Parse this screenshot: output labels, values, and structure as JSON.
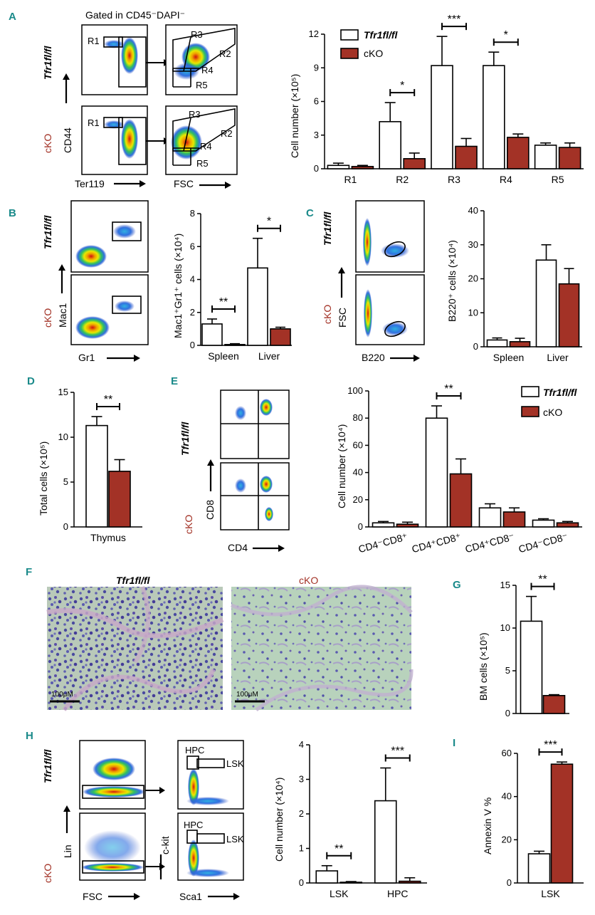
{
  "colors": {
    "wt": "#ffffff",
    "cko": "#a33226",
    "panel_label": "#1a8a8a"
  },
  "genotypes": {
    "wt": "Tfr1fl/fl",
    "cko": "cKO"
  },
  "A": {
    "label": "A",
    "gated_text": "Gated in CD45⁻DAPI⁻",
    "gates_left": [
      "R1"
    ],
    "gates_right": [
      "R3",
      "R2",
      "R4",
      "R5"
    ],
    "x_axis_1": "Ter119",
    "x_axis_2": "FSC",
    "y_axis": "CD44",
    "chart_data": {
      "type": "bar",
      "ylabel": "Cell number (×10⁵)",
      "ylim": [
        0,
        12
      ],
      "yticks": [
        "0",
        "3",
        "6",
        "9",
        "12"
      ],
      "categories": [
        "R1",
        "R2",
        "R3",
        "R4",
        "R5"
      ],
      "series": [
        {
          "name": "Tfr1fl/fl",
          "values": [
            0.3,
            4.2,
            9.2,
            9.2,
            2.1
          ],
          "err": [
            0.2,
            1.7,
            2.6,
            1.2,
            0.2
          ]
        },
        {
          "name": "cKO",
          "values": [
            0.2,
            0.9,
            2.0,
            2.8,
            1.9
          ],
          "err": [
            0.1,
            0.5,
            0.7,
            0.3,
            0.4
          ]
        }
      ],
      "sig": [
        "",
        "*",
        "***",
        "*",
        ""
      ],
      "legend": [
        "Tfr1fl/fl",
        "cKO"
      ]
    }
  },
  "B": {
    "label": "B",
    "x_axis": "Gr1",
    "y_axis": "Mac1",
    "chart_data": {
      "type": "bar",
      "ylabel": "Mac1⁺Gr1⁺ cells (×10⁴)",
      "ylim": [
        0,
        8
      ],
      "yticks": [
        "0",
        "2",
        "4",
        "6",
        "8"
      ],
      "categories": [
        "Spleen",
        "Liver"
      ],
      "series": [
        {
          "name": "Tfr1fl/fl",
          "values": [
            1.3,
            4.7
          ],
          "err": [
            0.3,
            1.8
          ]
        },
        {
          "name": "cKO",
          "values": [
            0.05,
            1.0
          ],
          "err": [
            0.05,
            0.1
          ]
        }
      ],
      "sig": [
        "**",
        "*"
      ]
    }
  },
  "C": {
    "label": "C",
    "x_axis": "B220",
    "y_axis": "FSC",
    "chart_data": {
      "type": "bar",
      "ylabel": "B220⁺ cells (×10⁴)",
      "ylim": [
        0,
        40
      ],
      "yticks": [
        "0",
        "10",
        "20",
        "30",
        "40"
      ],
      "categories": [
        "Spleen",
        "Liver"
      ],
      "series": [
        {
          "name": "Tfr1fl/fl",
          "values": [
            2.0,
            25.5
          ],
          "err": [
            0.6,
            4.5
          ]
        },
        {
          "name": "cKO",
          "values": [
            1.5,
            18.5
          ],
          "err": [
            1.0,
            4.5
          ]
        }
      ],
      "sig": [
        "",
        ""
      ]
    }
  },
  "D": {
    "label": "D",
    "chart_data": {
      "type": "bar",
      "ylabel": "Total cells (×10⁵)",
      "ylim": [
        0,
        15
      ],
      "yticks": [
        "0",
        "5",
        "10",
        "15"
      ],
      "categories": [
        "Thymus"
      ],
      "series": [
        {
          "name": "Tfr1fl/fl",
          "values": [
            11.3
          ],
          "err": [
            1.0
          ]
        },
        {
          "name": "cKO",
          "values": [
            6.2
          ],
          "err": [
            1.3
          ]
        }
      ],
      "sig": [
        "**"
      ]
    }
  },
  "E": {
    "label": "E",
    "x_axis": "CD4",
    "y_axis": "CD8",
    "chart_data": {
      "type": "bar",
      "ylabel": "Cell number (×10⁴)",
      "ylim": [
        0,
        100
      ],
      "yticks": [
        "0",
        "20",
        "40",
        "60",
        "80",
        "100"
      ],
      "categories": [
        "CD4⁻CD8⁺",
        "CD4⁺CD8⁺",
        "CD4⁺CD8⁻",
        "CD4⁻CD8⁻"
      ],
      "series": [
        {
          "name": "Tfr1fl/fl",
          "values": [
            3,
            80,
            14,
            5
          ],
          "err": [
            1,
            9,
            3,
            1
          ]
        },
        {
          "name": "cKO",
          "values": [
            2,
            39,
            11,
            3
          ],
          "err": [
            1.5,
            11,
            3,
            1
          ]
        }
      ],
      "sig": [
        "",
        "**",
        "",
        ""
      ],
      "legend": [
        "Tfr1fl/fl",
        "cKO"
      ]
    }
  },
  "F": {
    "label": "F",
    "scale_bar": "100μM"
  },
  "G": {
    "label": "G",
    "chart_data": {
      "type": "bar",
      "ylabel": "BM cells (×10⁵)",
      "ylim": [
        0,
        15
      ],
      "yticks": [
        "0",
        "5",
        "10",
        "15"
      ],
      "categories": [
        ""
      ],
      "series": [
        {
          "name": "Tfr1fl/fl",
          "values": [
            10.8
          ],
          "err": [
            2.9
          ]
        },
        {
          "name": "cKO",
          "values": [
            2.1
          ],
          "err": [
            0.1
          ]
        }
      ],
      "sig": [
        "**"
      ]
    }
  },
  "H": {
    "label": "H",
    "x_axis_1": "FSC",
    "x_axis_2": "Sca1",
    "y_axis_1": "Lin",
    "y_axis_2": "c-kit",
    "gates": [
      "HPC",
      "LSK"
    ],
    "chart_data": {
      "type": "bar",
      "ylabel": "Cell number (×10⁴)",
      "ylim": [
        0,
        4
      ],
      "yticks": [
        "0",
        "1",
        "2",
        "3",
        "4"
      ],
      "categories": [
        "LSK",
        "HPC"
      ],
      "series": [
        {
          "name": "Tfr1fl/fl",
          "values": [
            0.35,
            2.38
          ],
          "err": [
            0.15,
            0.95
          ]
        },
        {
          "name": "cKO",
          "values": [
            0.02,
            0.05
          ],
          "err": [
            0.02,
            0.1
          ]
        }
      ],
      "sig": [
        "**",
        "***"
      ]
    }
  },
  "I": {
    "label": "I",
    "chart_data": {
      "type": "bar",
      "ylabel": "Annexin V %",
      "ylim": [
        0,
        60
      ],
      "yticks": [
        "0",
        "20",
        "40",
        "60"
      ],
      "categories": [
        "LSK"
      ],
      "series": [
        {
          "name": "Tfr1fl/fl",
          "values": [
            13.5
          ],
          "err": [
            1.2
          ]
        },
        {
          "name": "cKO",
          "values": [
            55
          ],
          "err": [
            1.0
          ]
        }
      ],
      "sig": [
        "***"
      ]
    }
  }
}
